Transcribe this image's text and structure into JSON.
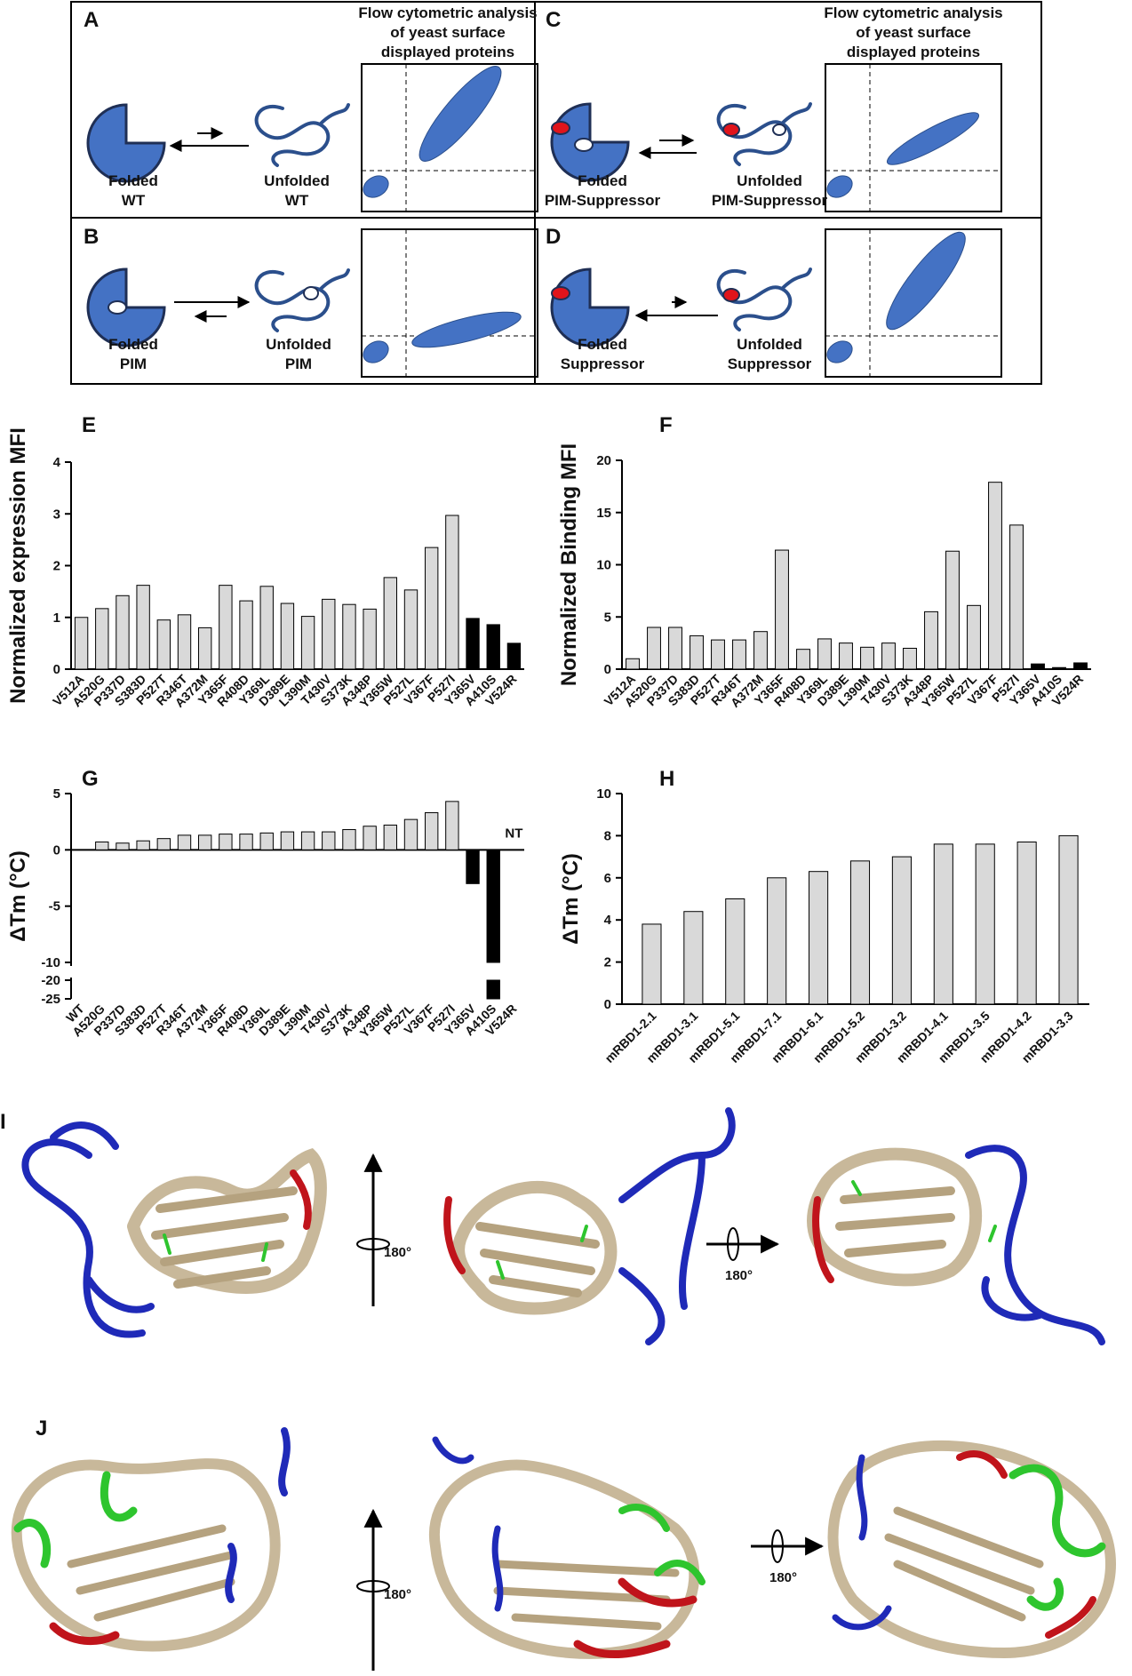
{
  "panels": {
    "A": "A",
    "B": "B",
    "C": "C",
    "D": "D",
    "E": "E",
    "F": "F",
    "G": "G",
    "H": "H",
    "I": "I",
    "J": "J"
  },
  "schematic": {
    "flow_title_1": "Flow cytometric analysis",
    "flow_title_2": "of yeast surface",
    "flow_title_3": "displayed proteins",
    "A": {
      "left_1": "Folded",
      "left_2": "WT",
      "right_1": "Unfolded",
      "right_2": "WT"
    },
    "B": {
      "left_1": "Folded",
      "left_2": "PIM",
      "right_1": "Unfolded",
      "right_2": "PIM"
    },
    "C": {
      "left_1": "Folded",
      "left_2": "PIM-Suppressor",
      "right_1": "Unfolded",
      "right_2": "PIM-Suppressor"
    },
    "D": {
      "left_1": "Folded",
      "left_2": "Suppressor",
      "right_1": "Unfolded",
      "right_2": "Suppressor"
    }
  },
  "rotation": {
    "label": "180°"
  },
  "colors": {
    "bar_gray": "#d9d9d9",
    "bar_black": "#000000",
    "protein_blue": "#4472c4",
    "ribbon_tan": "#c8b89a",
    "ribbon_blue": "#1f2ab8",
    "ribbon_red": "#c0141b",
    "ribbon_green": "#2ec52e",
    "pim_dot_red": "#e0141b"
  },
  "chart_data": [
    {
      "id": "E",
      "type": "bar",
      "ylabel": "Normalized expression MFI",
      "ylim": [
        0,
        4
      ],
      "yticks": [
        "0",
        "1",
        "2",
        "3",
        "4"
      ],
      "categories": [
        "V512A",
        "A520G",
        "P337D",
        "S383D",
        "P527T",
        "R346T",
        "A372M",
        "Y365F",
        "R408D",
        "Y369L",
        "D389E",
        "L390M",
        "T430V",
        "S373K",
        "A348P",
        "Y365W",
        "P527L",
        "V367F",
        "P527I",
        "Y365V",
        "A410S",
        "V524R"
      ],
      "values": [
        1.0,
        1.17,
        1.42,
        1.62,
        0.95,
        1.05,
        0.8,
        1.62,
        1.32,
        1.6,
        1.27,
        1.02,
        1.35,
        1.25,
        1.16,
        1.77,
        1.53,
        2.35,
        2.97,
        0.98,
        0.86,
        0.5
      ],
      "black_from": 19
    },
    {
      "id": "F",
      "type": "bar",
      "ylabel": "Normalized Binding MFI",
      "ylim": [
        0,
        20
      ],
      "yticks": [
        "0",
        "5",
        "10",
        "15",
        "20"
      ],
      "categories": [
        "V512A",
        "A520G",
        "P337D",
        "S383D",
        "P527T",
        "R346T",
        "A372M",
        "Y365F",
        "R408D",
        "Y369L",
        "D389E",
        "L390M",
        "T430V",
        "S373K",
        "A348P",
        "Y365W",
        "P527L",
        "V367F",
        "P527I",
        "Y365V",
        "A410S",
        "V524R"
      ],
      "values": [
        1.0,
        4.0,
        4.0,
        3.2,
        2.8,
        2.8,
        3.6,
        11.4,
        1.9,
        2.9,
        2.5,
        2.1,
        2.5,
        2.0,
        5.5,
        11.3,
        6.1,
        17.9,
        13.8,
        0.5,
        0.15,
        0.6
      ],
      "black_from": 19
    },
    {
      "id": "G",
      "type": "bar",
      "ylabel": "ΔTm (°C)",
      "yticks_upper": [
        "5",
        "0",
        "-5",
        "-10"
      ],
      "yticks_lower": [
        "-20",
        "-25"
      ],
      "categories": [
        "WT",
        "A520G",
        "P337D",
        "S383D",
        "P527T",
        "R346T",
        "A372M",
        "Y365F",
        "R408D",
        "Y369L",
        "D389E",
        "L390M",
        "T430V",
        "S373K",
        "A348P",
        "Y365W",
        "P527L",
        "V367F",
        "P527I",
        "Y365V",
        "A410S",
        "V524R"
      ],
      "values": [
        0,
        0.7,
        0.6,
        0.8,
        1.0,
        1.3,
        1.3,
        1.4,
        1.4,
        1.5,
        1.6,
        1.6,
        1.6,
        1.8,
        2.1,
        2.2,
        2.7,
        3.3,
        4.3,
        -3.0,
        -25,
        null
      ],
      "black_from": 19,
      "annotation": "NT"
    },
    {
      "id": "H",
      "type": "bar",
      "ylabel": "ΔTm (°C)",
      "ylim": [
        0,
        10
      ],
      "yticks": [
        "0",
        "2",
        "4",
        "6",
        "8",
        "10"
      ],
      "categories": [
        "mRBD1-2.1",
        "mRBD1-3.1",
        "mRBD1-5.1",
        "mRBD1-7.1",
        "mRBD1-6.1",
        "mRBD1-5.2",
        "mRBD1-3.2",
        "mRBD1-4.1",
        "mRBD1-3.5",
        "mRBD1-4.2",
        "mRBD1-3.3"
      ],
      "values": [
        3.8,
        4.4,
        5.0,
        6.0,
        6.3,
        6.8,
        7.0,
        7.6,
        7.6,
        7.7,
        8.0
      ]
    }
  ]
}
